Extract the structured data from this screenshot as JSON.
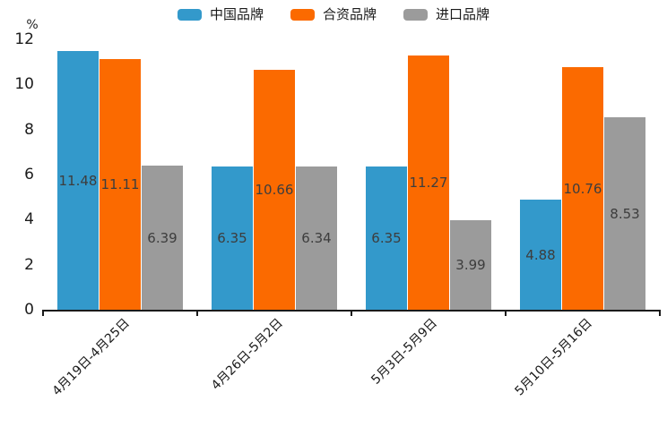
{
  "chart_data": {
    "type": "bar",
    "title": "",
    "unit_label": "%",
    "categories": [
      "4月19日-4月25日",
      "4月26日-5月2日",
      "5月3日-5月9日",
      "5月10日-5月16日"
    ],
    "series": [
      {
        "name": "中国品牌",
        "color": "#3399cb",
        "values": [
          11.48,
          6.35,
          6.35,
          4.88
        ]
      },
      {
        "name": "合资品牌",
        "color": "#fb6a00",
        "values": [
          11.11,
          10.66,
          11.27,
          10.76
        ]
      },
      {
        "name": "进口品牌",
        "color": "#9b9b9b",
        "values": [
          6.39,
          6.34,
          3.99,
          8.53
        ]
      }
    ],
    "value_labels": [
      [
        "11.48",
        "6.35",
        "6.35",
        "4.88"
      ],
      [
        "11.11",
        "10.66",
        "11.27",
        "10.76"
      ],
      [
        "6.39",
        "6.34",
        "3.99",
        "8.53"
      ]
    ],
    "ylim": [
      0,
      12
    ],
    "yticks": [
      0,
      2,
      4,
      6,
      8,
      10,
      12
    ],
    "grid": false,
    "legend_position": "top",
    "axis_color": "#1a1a1a",
    "value_label_color": "#3d3d3d"
  }
}
